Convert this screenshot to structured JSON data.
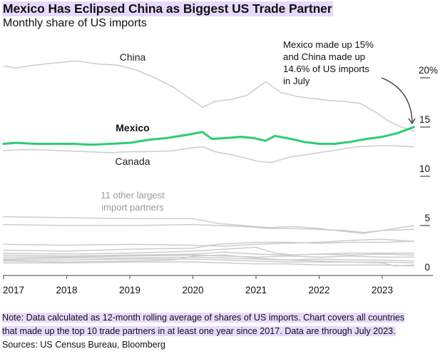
{
  "header": {
    "title": "Mexico Has Eclipsed China as Biggest US Trade Partner",
    "subtitle": "Monthly share of US imports"
  },
  "footer": {
    "note_line1": "Note: Data calculated as 12-month rolling average of shares of US imports. Chart covers all countries",
    "note_line2": "that made up the top 10 trade partners in at least one year since 2017. Data are through July 2023.",
    "sources": "Sources: US Census Bureau, Bloomberg"
  },
  "colors": {
    "mexico": "#2ecc71",
    "others": "#cccccc",
    "highlight": "#e8d9ff",
    "axis": "#666666"
  },
  "chart_data": {
    "type": "line",
    "title": "Mexico Has Eclipsed China as Biggest US Trade Partner",
    "subtitle": "Monthly share of US imports",
    "xlabel": "",
    "ylabel": "",
    "x_range": [
      2017.0,
      2023.5
    ],
    "ylim": [
      0,
      22
    ],
    "y_ticks": [
      {
        "value": 0,
        "label": "0"
      },
      {
        "value": 5,
        "label": "5"
      },
      {
        "value": 10,
        "label": "10"
      },
      {
        "value": 15,
        "label": "15"
      },
      {
        "value": 20,
        "label": "20%"
      }
    ],
    "x_ticks": [
      {
        "value": 2017,
        "label": "2017"
      },
      {
        "value": 2018,
        "label": "2018"
      },
      {
        "value": 2019,
        "label": "2019"
      },
      {
        "value": 2020,
        "label": "2020"
      },
      {
        "value": 2021,
        "label": "2021"
      },
      {
        "value": 2022,
        "label": "2022"
      },
      {
        "value": 2023,
        "label": "2023"
      }
    ],
    "grid": false,
    "series": [
      {
        "name": "China",
        "label": "China",
        "highlight": false,
        "x": [
          2017.0,
          2017.2,
          2017.5,
          2017.8,
          2018.15,
          2018.5,
          2018.8,
          2019.1,
          2019.4,
          2019.7,
          2019.95,
          2020.15,
          2020.35,
          2020.6,
          2020.85,
          2021.15,
          2021.4,
          2021.65,
          2021.9,
          2022.15,
          2022.4,
          2022.65,
          2022.9,
          2023.1,
          2023.3,
          2023.5
        ],
        "values": [
          21.2,
          21.0,
          21.3,
          21.5,
          21.7,
          21.4,
          21.3,
          20.8,
          20.0,
          19.0,
          17.9,
          17.0,
          17.6,
          17.8,
          18.2,
          19.6,
          18.5,
          18.1,
          17.9,
          17.7,
          17.6,
          17.4,
          16.5,
          15.6,
          15.0,
          14.6
        ]
      },
      {
        "name": "Mexico",
        "label": "Mexico",
        "highlight": true,
        "x": [
          2017.0,
          2017.2,
          2017.5,
          2017.8,
          2018.1,
          2018.4,
          2018.7,
          2019.0,
          2019.3,
          2019.6,
          2019.9,
          2020.15,
          2020.3,
          2020.55,
          2020.75,
          2020.95,
          2021.15,
          2021.3,
          2021.55,
          2021.75,
          2022.0,
          2022.25,
          2022.5,
          2022.75,
          2023.0,
          2023.25,
          2023.5
        ],
        "values": [
          13.3,
          13.4,
          13.3,
          13.3,
          13.3,
          13.2,
          13.3,
          13.4,
          13.7,
          13.9,
          14.2,
          14.5,
          13.8,
          13.9,
          14.0,
          13.9,
          13.6,
          14.1,
          13.8,
          13.5,
          13.3,
          13.3,
          13.5,
          13.8,
          14.0,
          14.4,
          15.0
        ]
      },
      {
        "name": "Canada",
        "label": "Canada",
        "highlight": false,
        "x": [
          2017.0,
          2017.3,
          2017.6,
          2017.9,
          2018.3,
          2018.7,
          2019.0,
          2019.3,
          2019.7,
          2020.0,
          2020.15,
          2020.35,
          2020.6,
          2020.8,
          2021.05,
          2021.25,
          2021.5,
          2021.8,
          2022.0,
          2022.3,
          2022.6,
          2022.9,
          2023.2,
          2023.5
        ],
        "values": [
          12.6,
          12.7,
          12.7,
          12.6,
          12.5,
          12.4,
          12.5,
          12.5,
          12.6,
          12.9,
          13.0,
          12.5,
          12.2,
          11.9,
          11.5,
          11.4,
          11.9,
          12.2,
          12.4,
          12.7,
          13.0,
          13.1,
          13.1,
          13.0
        ]
      },
      {
        "name": "Other partner 1",
        "highlight": false,
        "x": [
          2017.0,
          2018.0,
          2019.0,
          2020.0,
          2020.4,
          2020.8,
          2021.2,
          2021.6,
          2022.0,
          2022.4,
          2022.7,
          2023.0,
          2023.5
        ],
        "values": [
          5.9,
          5.8,
          5.7,
          5.7,
          5.2,
          5.0,
          4.8,
          4.9,
          4.7,
          4.4,
          4.2,
          4.5,
          5.0
        ]
      },
      {
        "name": "Other partner 2",
        "highlight": false,
        "x": [
          2017.0,
          2018.0,
          2019.0,
          2020.0,
          2020.4,
          2020.8,
          2021.2,
          2021.6,
          2022.0,
          2022.4,
          2022.7,
          2023.0,
          2023.5
        ],
        "values": [
          5.1,
          5.0,
          5.0,
          5.1,
          5.0,
          4.9,
          4.7,
          4.7,
          4.6,
          4.5,
          4.3,
          4.5,
          4.6
        ]
      },
      {
        "name": "Other partner 3",
        "highlight": false,
        "x": [
          2017.0,
          2018.0,
          2019.0,
          2020.0,
          2020.5,
          2021.0,
          2021.5,
          2022.0,
          2022.5,
          2023.0,
          2023.5
        ],
        "values": [
          3.1,
          3.0,
          3.1,
          3.0,
          2.9,
          3.1,
          3.2,
          3.3,
          3.5,
          3.6,
          3.4
        ]
      },
      {
        "name": "Other partner 4",
        "highlight": false,
        "x": [
          2017.0,
          2018.0,
          2019.0,
          2020.0,
          2020.4,
          2021.0,
          2021.5,
          2022.0,
          2022.5,
          2023.0,
          2023.5
        ],
        "values": [
          2.5,
          2.4,
          2.6,
          2.7,
          3.1,
          3.3,
          3.3,
          3.2,
          3.3,
          3.3,
          3.4
        ]
      },
      {
        "name": "Other partner 5",
        "highlight": false,
        "x": [
          2017.0,
          2018.0,
          2019.0,
          2020.0,
          2020.5,
          2021.0,
          2021.3,
          2021.6,
          2022.0,
          2022.5,
          2023.0,
          2023.5
        ],
        "values": [
          2.2,
          2.1,
          2.2,
          2.4,
          2.6,
          2.8,
          2.2,
          2.0,
          2.1,
          2.2,
          2.2,
          2.2
        ]
      },
      {
        "name": "Other partner 6",
        "highlight": false,
        "x": [
          2017.0,
          2018.0,
          2019.0,
          2020.0,
          2020.5,
          2021.0,
          2021.5,
          2022.0,
          2022.5,
          2023.0,
          2023.5
        ],
        "values": [
          2.0,
          1.9,
          2.0,
          2.1,
          2.3,
          2.1,
          2.0,
          2.1,
          2.0,
          2.1,
          2.0
        ]
      },
      {
        "name": "Other partner 7",
        "highlight": false,
        "x": [
          2017.0,
          2018.0,
          2019.0,
          2020.0,
          2020.5,
          2021.0,
          2021.5,
          2022.0,
          2022.5,
          2023.0,
          2023.5
        ],
        "values": [
          1.8,
          1.8,
          1.9,
          2.0,
          1.9,
          1.8,
          1.9,
          1.8,
          1.9,
          1.8,
          1.8
        ]
      },
      {
        "name": "Other partner 8",
        "highlight": false,
        "x": [
          2017.0,
          2018.0,
          2019.0,
          2020.0,
          2020.5,
          2021.0,
          2021.5,
          2022.0,
          2022.5,
          2023.0,
          2023.5
        ],
        "values": [
          1.6,
          1.7,
          1.7,
          1.8,
          1.7,
          1.6,
          1.5,
          1.6,
          1.5,
          1.5,
          1.4
        ]
      },
      {
        "name": "Other partner 9",
        "highlight": false,
        "x": [
          2017.0,
          2018.0,
          2019.0,
          2020.0,
          2020.5,
          2021.0,
          2021.5,
          2022.0,
          2022.5,
          2023.0,
          2023.5
        ],
        "values": [
          1.5,
          1.5,
          1.6,
          1.6,
          1.5,
          1.4,
          1.3,
          1.3,
          1.3,
          1.3,
          1.2
        ]
      },
      {
        "name": "Other partner 10",
        "highlight": false,
        "x": [
          2017.0,
          2018.0,
          2019.0,
          2019.7,
          2020.0,
          2020.5,
          2021.0,
          2021.5,
          2022.0,
          2022.5,
          2023.0,
          2023.2,
          2023.5
        ],
        "values": [
          1.4,
          1.3,
          1.4,
          1.5,
          1.9,
          2.0,
          1.7,
          1.5,
          1.4,
          1.3,
          1.2,
          0.9,
          1.0
        ]
      },
      {
        "name": "Other partner 11",
        "highlight": false,
        "x": [
          2017.0,
          2018.0,
          2019.0,
          2020.0,
          2020.5,
          2021.0,
          2021.5,
          2022.0,
          2022.5,
          2023.0,
          2023.5
        ],
        "values": [
          1.2,
          1.2,
          1.3,
          1.3,
          1.2,
          1.1,
          1.1,
          1.0,
          1.0,
          1.0,
          0.9
        ]
      }
    ],
    "annotations": [
      {
        "id": "china",
        "text": "China"
      },
      {
        "id": "mexico",
        "text": "Mexico"
      },
      {
        "id": "canada",
        "text": "Canada"
      },
      {
        "id": "others_line1",
        "text": "11 other largest"
      },
      {
        "id": "others_line2",
        "text": "import partners"
      },
      {
        "id": "callout_line1",
        "text": "Mexico made up 15%"
      },
      {
        "id": "callout_line2",
        "text": "and China made up"
      },
      {
        "id": "callout_line3",
        "text": "14.6% of US imports"
      },
      {
        "id": "callout_line4",
        "text": "in July"
      }
    ]
  }
}
